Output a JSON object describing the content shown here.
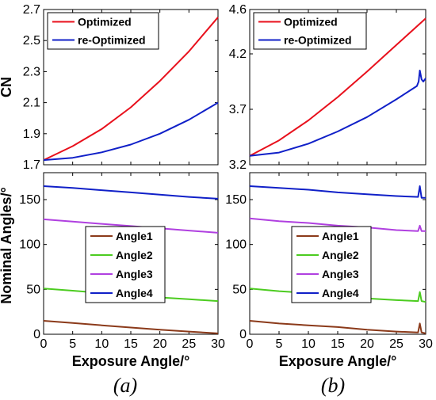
{
  "chart_data": [
    {
      "id": "a_top",
      "type": "line",
      "ylabel": "CN",
      "xlim": [
        0,
        30
      ],
      "ylim": [
        1.7,
        2.7
      ],
      "yticks": [
        "1.7",
        "1.9",
        "2.1",
        "2.3",
        "2.5",
        "2.7"
      ],
      "legend": "top-left",
      "series": [
        {
          "name": "Optimized",
          "color": "#e8101c",
          "x": [
            0,
            5,
            10,
            15,
            20,
            25,
            30
          ],
          "y": [
            1.73,
            1.82,
            1.93,
            2.07,
            2.24,
            2.43,
            2.65
          ]
        },
        {
          "name": "re-Optimized",
          "color": "#1020c8",
          "x": [
            0,
            5,
            10,
            15,
            20,
            25,
            30
          ],
          "y": [
            1.73,
            1.745,
            1.78,
            1.83,
            1.9,
            1.99,
            2.1
          ]
        }
      ]
    },
    {
      "id": "b_top",
      "type": "line",
      "xlim": [
        0,
        30
      ],
      "ylim": [
        3.2,
        4.6
      ],
      "yticks": [
        "3.2",
        "3.7",
        "4.2",
        "4.6"
      ],
      "legend": "top-left",
      "series": [
        {
          "name": "Optimized",
          "color": "#e8101c",
          "x": [
            0,
            5,
            10,
            15,
            20,
            25,
            30
          ],
          "y": [
            3.28,
            3.42,
            3.6,
            3.81,
            4.04,
            4.28,
            4.52
          ]
        },
        {
          "name": "re-Optimized",
          "color": "#1020c8",
          "x": [
            0,
            5,
            10,
            15,
            20,
            25,
            28.5,
            28.8,
            29.0,
            29.3,
            29.6,
            30
          ],
          "y": [
            3.28,
            3.31,
            3.39,
            3.5,
            3.63,
            3.79,
            3.91,
            3.95,
            4.05,
            3.97,
            3.95,
            3.98
          ]
        }
      ]
    },
    {
      "id": "a_bottom",
      "type": "line",
      "xlabel": "Exposure Angle/°",
      "ylabel": "Nominal Angles/°",
      "xlim": [
        0,
        30
      ],
      "ylim": [
        0,
        180
      ],
      "xticks": [
        "0",
        "5",
        "10",
        "15",
        "20",
        "25",
        "30"
      ],
      "yticks": [
        "0",
        "50",
        "100",
        "150"
      ],
      "legend": "center",
      "series": [
        {
          "name": "Angle1",
          "color": "#8b3a1a",
          "x": [
            0,
            5,
            10,
            15,
            20,
            25,
            30
          ],
          "y": [
            15,
            12.5,
            10,
            7.5,
            5,
            3,
            1
          ]
        },
        {
          "name": "Angle2",
          "color": "#4ccc20",
          "x": [
            0,
            5,
            10,
            15,
            20,
            25,
            30
          ],
          "y": [
            51,
            48.5,
            46,
            43.5,
            41,
            39,
            37
          ]
        },
        {
          "name": "Angle3",
          "color": "#b040e0",
          "x": [
            0,
            5,
            10,
            15,
            20,
            25,
            30
          ],
          "y": [
            128,
            125.5,
            123,
            120.5,
            118,
            115.5,
            113
          ]
        },
        {
          "name": "Angle4",
          "color": "#1020c8",
          "x": [
            0,
            5,
            10,
            15,
            20,
            25,
            30
          ],
          "y": [
            165,
            163,
            160.5,
            158,
            155.5,
            153,
            151
          ]
        }
      ]
    },
    {
      "id": "b_bottom",
      "type": "line",
      "xlabel": "Exposure Angle/°",
      "xlim": [
        0,
        30
      ],
      "ylim": [
        0,
        180
      ],
      "xticks": [
        "0",
        "5",
        "10",
        "15",
        "20",
        "25",
        "30"
      ],
      "yticks": [
        "0",
        "50",
        "100",
        "150"
      ],
      "legend": "center",
      "series": [
        {
          "name": "Angle1",
          "color": "#8b3a1a",
          "x": [
            0,
            5,
            10,
            15,
            20,
            25,
            28.7,
            29.0,
            29.3,
            30
          ],
          "y": [
            15,
            12,
            10,
            8,
            5,
            3,
            2,
            12,
            2,
            1
          ]
        },
        {
          "name": "Angle2",
          "color": "#4ccc20",
          "x": [
            0,
            5,
            10,
            15,
            20,
            25,
            28.7,
            29.0,
            29.3,
            30
          ],
          "y": [
            51,
            48,
            46,
            43,
            40,
            38,
            37,
            47,
            37,
            36
          ]
        },
        {
          "name": "Angle3",
          "color": "#b040e0",
          "x": [
            0,
            5,
            10,
            15,
            20,
            25,
            28.7,
            29.0,
            29.3,
            30
          ],
          "y": [
            129,
            126,
            124,
            121,
            119,
            116,
            115,
            121,
            115,
            115
          ]
        },
        {
          "name": "Angle4",
          "color": "#1020c8",
          "x": [
            0,
            5,
            10,
            15,
            20,
            25,
            28.7,
            29.0,
            29.3,
            30
          ],
          "y": [
            165,
            163,
            161,
            158,
            156,
            154,
            153,
            165,
            152,
            152
          ]
        }
      ]
    }
  ],
  "sublabels": [
    "(a)",
    "(b)"
  ]
}
